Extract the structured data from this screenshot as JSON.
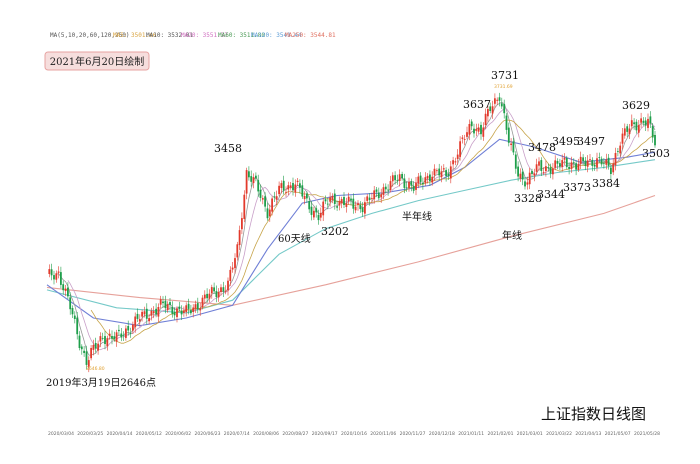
{
  "chart_data": {
    "type": "candlestick",
    "title": "上证指数日线图",
    "date_badge": "2021年6月20日绘制",
    "ma_legend": [
      {
        "text": "MA(5,10,20,60,120,250)",
        "color": "#555555"
      },
      {
        "text": "MA5: 3501.46",
        "color": "#d9a441"
      },
      {
        "text": "MA10: 3532.01",
        "color": "#555555"
      },
      {
        "text": "MA20: 3551.37",
        "color": "#d070c0"
      },
      {
        "text": "MA60: 3511.80",
        "color": "#4a9a55"
      },
      {
        "text": "MA120: 3541.44",
        "color": "#5b9bd5"
      },
      {
        "text": "MA250: 3544.81",
        "color": "#e07060"
      }
    ],
    "x_ticks": [
      "2020/03/04",
      "2020/03/25",
      "2020/04/14",
      "2020/05/12",
      "2020/06/02",
      "2020/06/23",
      "2020/07/14",
      "2020/08/06",
      "2020/08/27",
      "2020/09/17",
      "2020/10/16",
      "2020/11/06",
      "2020/11/27",
      "2020/12/18",
      "2021/01/11",
      "2021/02/01",
      "2021/03/01",
      "2021/03/22",
      "2021/04/13",
      "2021/05/07",
      "2021/05/28"
    ],
    "annotations": [
      {
        "text": "3458",
        "x_date": "2020/07/14",
        "value": 3458
      },
      {
        "text": "60天线"
      },
      {
        "text": "3202",
        "value": 3202
      },
      {
        "text": "半年线"
      },
      {
        "text": "3637",
        "value": 3637
      },
      {
        "text": "3731",
        "value": 3731
      },
      {
        "text": "3478",
        "value": 3478
      },
      {
        "text": "3328",
        "value": 3328
      },
      {
        "text": "3344",
        "value": 3344
      },
      {
        "text": "年线"
      },
      {
        "text": "3495",
        "value": 3495
      },
      {
        "text": "3497",
        "value": 3497
      },
      {
        "text": "3373",
        "value": 3373
      },
      {
        "text": "3384",
        "value": 3384
      },
      {
        "text": "3629",
        "value": 3629
      },
      {
        "text": "3503",
        "value": 3503
      },
      {
        "text": "2019年3月19日2646点",
        "value": 2646
      }
    ],
    "small_labels": {
      "high": "3731.69",
      "low": "2646.80"
    },
    "ylim": [
      2600,
      3800
    ],
    "anchors": [
      {
        "i": 0,
        "v": 2990
      },
      {
        "i": 5,
        "v": 3010
      },
      {
        "i": 10,
        "v": 2870
      },
      {
        "i": 14,
        "v": 2740
      },
      {
        "i": 17,
        "v": 2660
      },
      {
        "i": 24,
        "v": 2760
      },
      {
        "i": 30,
        "v": 2750
      },
      {
        "i": 40,
        "v": 2830
      },
      {
        "i": 50,
        "v": 2880
      },
      {
        "i": 60,
        "v": 2850
      },
      {
        "i": 70,
        "v": 2920
      },
      {
        "i": 78,
        "v": 2960
      },
      {
        "i": 82,
        "v": 3100
      },
      {
        "i": 86,
        "v": 3400
      },
      {
        "i": 90,
        "v": 3350
      },
      {
        "i": 95,
        "v": 3250
      },
      {
        "i": 100,
        "v": 3330
      },
      {
        "i": 107,
        "v": 3360
      },
      {
        "i": 112,
        "v": 3280
      },
      {
        "i": 117,
        "v": 3230
      },
      {
        "i": 122,
        "v": 3300
      },
      {
        "i": 128,
        "v": 3280
      },
      {
        "i": 136,
        "v": 3270
      },
      {
        "i": 144,
        "v": 3330
      },
      {
        "i": 152,
        "v": 3380
      },
      {
        "i": 158,
        "v": 3340
      },
      {
        "i": 166,
        "v": 3400
      },
      {
        "i": 172,
        "v": 3390
      },
      {
        "i": 178,
        "v": 3500
      },
      {
        "i": 183,
        "v": 3590
      },
      {
        "i": 187,
        "v": 3560
      },
      {
        "i": 191,
        "v": 3650
      },
      {
        "i": 195,
        "v": 3710
      },
      {
        "i": 199,
        "v": 3520
      },
      {
        "i": 203,
        "v": 3400
      },
      {
        "i": 207,
        "v": 3360
      },
      {
        "i": 212,
        "v": 3430
      },
      {
        "i": 218,
        "v": 3410
      },
      {
        "i": 223,
        "v": 3450
      },
      {
        "i": 228,
        "v": 3420
      },
      {
        "i": 233,
        "v": 3450
      },
      {
        "i": 238,
        "v": 3440
      },
      {
        "i": 243,
        "v": 3420
      },
      {
        "i": 247,
        "v": 3520
      },
      {
        "i": 252,
        "v": 3590
      },
      {
        "i": 256,
        "v": 3600
      },
      {
        "i": 259,
        "v": 3590
      },
      {
        "i": 262,
        "v": 3520
      }
    ],
    "ma_lines": [
      {
        "name": "年线",
        "color": "#e6a19a",
        "points": [
          [
            0,
            2950
          ],
          [
            40,
            2910
          ],
          [
            80,
            2880
          ],
          [
            120,
            2960
          ],
          [
            160,
            3050
          ],
          [
            200,
            3150
          ],
          [
            240,
            3240
          ],
          [
            262,
            3310
          ]
        ]
      },
      {
        "name": "半年线",
        "color": "#74c9c8",
        "points": [
          [
            0,
            2940
          ],
          [
            30,
            2870
          ],
          [
            60,
            2850
          ],
          [
            80,
            2900
          ],
          [
            100,
            3080
          ],
          [
            120,
            3180
          ],
          [
            140,
            3240
          ],
          [
            160,
            3290
          ],
          [
            180,
            3330
          ],
          [
            200,
            3370
          ],
          [
            220,
            3400
          ],
          [
            240,
            3420
          ],
          [
            262,
            3450
          ]
        ]
      },
      {
        "name": "60天线",
        "color": "#6f7fd6",
        "points": [
          [
            0,
            2960
          ],
          [
            20,
            2830
          ],
          [
            40,
            2800
          ],
          [
            60,
            2830
          ],
          [
            80,
            2880
          ],
          [
            95,
            3100
          ],
          [
            110,
            3280
          ],
          [
            125,
            3310
          ],
          [
            145,
            3320
          ],
          [
            165,
            3350
          ],
          [
            180,
            3420
          ],
          [
            195,
            3530
          ],
          [
            210,
            3500
          ],
          [
            230,
            3440
          ],
          [
            250,
            3460
          ],
          [
            262,
            3480
          ]
        ]
      }
    ]
  }
}
